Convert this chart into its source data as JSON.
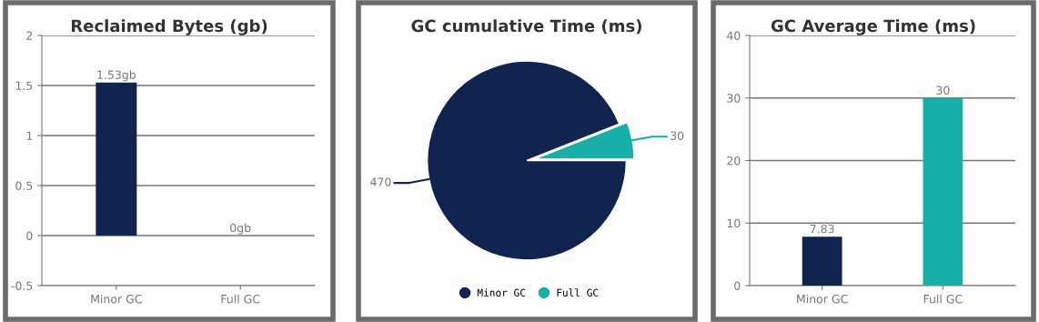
{
  "chart_data": [
    {
      "type": "bar",
      "title": "Reclaimed Bytes (gb)",
      "categories": [
        "Minor GC",
        "Full GC"
      ],
      "values": [
        1.53,
        0
      ],
      "colors": [
        "#10244f",
        "#10244f"
      ],
      "value_labels": [
        "1.53gb",
        "0gb"
      ],
      "ylim": [
        -0.5,
        2
      ],
      "yticks": [
        -0.5,
        0,
        0.5,
        1,
        1.5,
        2
      ],
      "grid": "y",
      "legend": false
    },
    {
      "type": "pie",
      "title": "GC cumulative Time (ms)",
      "categories": [
        "Minor GC",
        "Full GC"
      ],
      "values": [
        470,
        30
      ],
      "colors": [
        "#10244f",
        "#16b0a8"
      ],
      "data_labels": true,
      "legend": "bottom"
    },
    {
      "type": "bar",
      "title": "GC Average Time (ms)",
      "categories": [
        "Minor GC",
        "Full GC"
      ],
      "values": [
        7.83,
        30
      ],
      "colors": [
        "#10244f",
        "#16b0a8"
      ],
      "data_labels": true,
      "ylim": [
        0,
        40
      ],
      "yticks": [
        0,
        10,
        20,
        30,
        40
      ],
      "grid": "y",
      "legend": false
    }
  ]
}
